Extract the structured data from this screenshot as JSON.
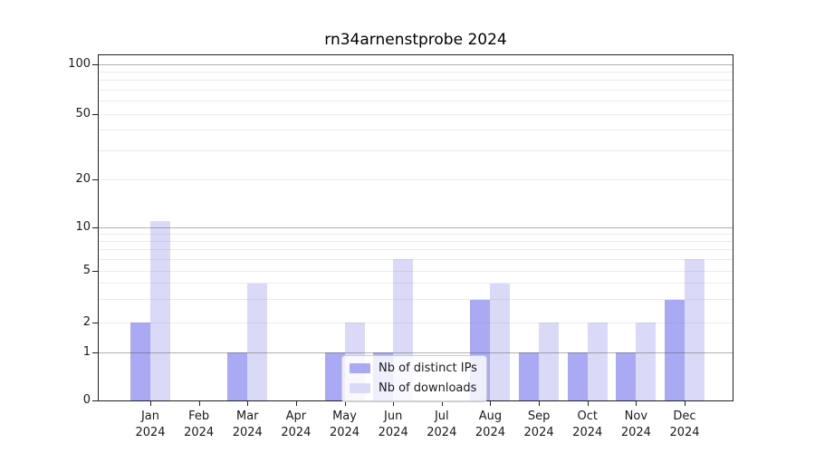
{
  "title": "rn34arnenstprobe 2024",
  "colors": {
    "distinct_ips_bar": "#a9a9f4",
    "downloads_bar": "#dadaf8",
    "grid_major": "#b0b0b0",
    "grid_minor": "#ebebeb",
    "axis": "#1f1f1f"
  },
  "legend": {
    "items": [
      {
        "label": "Nb of distinct IPs",
        "color": "#a9a9f4"
      },
      {
        "label": "Nb of downloads",
        "color": "#dadaf8"
      }
    ]
  },
  "chart_data": {
    "type": "bar",
    "title": "rn34arnenstprobe 2024",
    "categories": [
      "Jan 2024",
      "Feb 2024",
      "Mar 2024",
      "Apr 2024",
      "May 2024",
      "Jun 2024",
      "Jul 2024",
      "Aug 2024",
      "Sep 2024",
      "Oct 2024",
      "Nov 2024",
      "Dec 2024"
    ],
    "series": [
      {
        "name": "Nb of distinct IPs",
        "color": "#a9a9f4",
        "values": [
          2,
          0,
          1,
          0,
          1,
          1,
          0,
          3,
          1,
          1,
          1,
          3
        ]
      },
      {
        "name": "Nb of downloads",
        "color": "#dadaf8",
        "values": [
          11,
          0,
          4,
          0,
          2,
          6,
          0,
          4,
          2,
          2,
          2,
          6
        ]
      }
    ],
    "xlabel": "",
    "ylabel": "",
    "y_axis": {
      "scale": "symlog",
      "tick_values": [
        0,
        1,
        2,
        5,
        10,
        20,
        50,
        100
      ],
      "tick_labels": [
        "0",
        "1",
        "2",
        "5",
        "10",
        "20",
        "50",
        "100"
      ],
      "major_grid_values": [
        1,
        10,
        100
      ],
      "minor_grid_values": [
        2,
        3,
        4,
        5,
        6,
        7,
        8,
        9,
        20,
        30,
        40,
        50,
        60,
        70,
        80,
        90
      ],
      "ylim": [
        0,
        120
      ]
    },
    "grid": true,
    "legend_position": "lower center"
  }
}
